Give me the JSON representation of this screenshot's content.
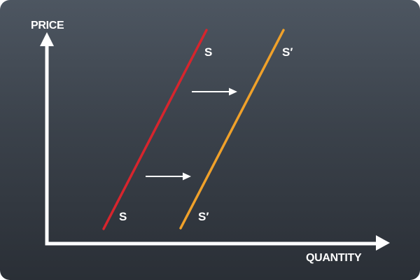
{
  "diagram": {
    "y_axis_label": "PRICE",
    "x_axis_label": "QUANTITY",
    "curves": [
      {
        "name": "original-supply",
        "top_label": "S",
        "bottom_label": "S",
        "color": "#d7252d"
      },
      {
        "name": "shifted-supply",
        "top_label": "S′",
        "bottom_label": "S′",
        "color": "#f0a12a"
      }
    ],
    "shift_direction": "right",
    "colors": {
      "axis": "#ffffff",
      "arrow": "#ffffff",
      "background_top": "#4d5661",
      "background_bottom": "#2a2f36"
    }
  }
}
